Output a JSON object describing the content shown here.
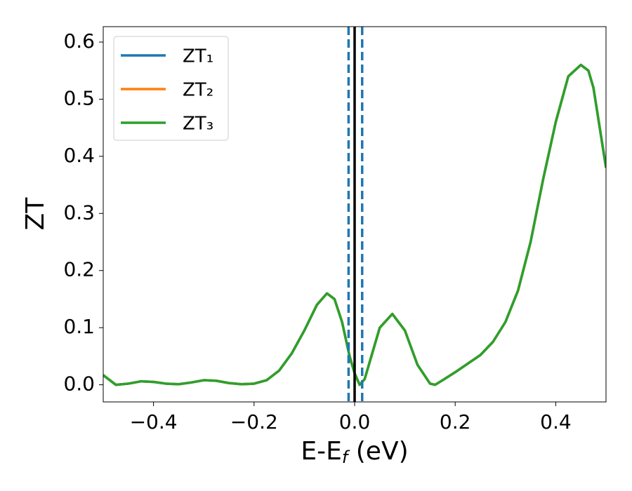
{
  "chart_data": {
    "type": "line",
    "xlabel": {
      "main": "E-E",
      "sub": "f",
      "unit": " (eV)"
    },
    "ylabel": "ZT",
    "x": [
      -0.5,
      -0.475,
      -0.45,
      -0.425,
      -0.4,
      -0.375,
      -0.35,
      -0.325,
      -0.3,
      -0.275,
      -0.25,
      -0.225,
      -0.2,
      -0.175,
      -0.15,
      -0.125,
      -0.1,
      -0.075,
      -0.055,
      -0.04,
      -0.025,
      -0.01,
      0.0,
      0.01,
      0.02,
      0.03,
      0.05,
      0.075,
      0.1,
      0.125,
      0.15,
      0.16,
      0.175,
      0.2,
      0.225,
      0.25,
      0.275,
      0.3,
      0.325,
      0.35,
      0.375,
      0.4,
      0.425,
      0.45,
      0.465,
      0.475,
      0.5
    ],
    "series": [
      {
        "name": "ZT₁",
        "color": "#1f77b4",
        "values": [
          0.017,
          0.0,
          0.002,
          0.006,
          0.005,
          0.002,
          0.001,
          0.004,
          0.008,
          0.007,
          0.003,
          0.001,
          0.002,
          0.008,
          0.025,
          0.055,
          0.095,
          0.14,
          0.16,
          0.15,
          0.11,
          0.05,
          0.02,
          0.0,
          0.01,
          0.04,
          0.1,
          0.124,
          0.095,
          0.035,
          0.002,
          0.0,
          0.008,
          0.022,
          0.037,
          0.052,
          0.075,
          0.11,
          0.165,
          0.25,
          0.36,
          0.46,
          0.54,
          0.56,
          0.55,
          0.52,
          0.38
        ]
      },
      {
        "name": "ZT₂",
        "color": "#ff7f0e",
        "values": [
          0.017,
          0.0,
          0.002,
          0.006,
          0.005,
          0.002,
          0.001,
          0.004,
          0.008,
          0.007,
          0.003,
          0.001,
          0.002,
          0.008,
          0.025,
          0.055,
          0.095,
          0.14,
          0.16,
          0.15,
          0.11,
          0.05,
          0.02,
          0.0,
          0.01,
          0.04,
          0.1,
          0.124,
          0.095,
          0.035,
          0.002,
          0.0,
          0.008,
          0.022,
          0.037,
          0.052,
          0.075,
          0.11,
          0.165,
          0.25,
          0.36,
          0.46,
          0.54,
          0.56,
          0.55,
          0.52,
          0.38
        ]
      },
      {
        "name": "ZT₃",
        "color": "#2ca02c",
        "values": [
          0.017,
          0.0,
          0.002,
          0.006,
          0.005,
          0.002,
          0.001,
          0.004,
          0.008,
          0.007,
          0.003,
          0.001,
          0.002,
          0.008,
          0.025,
          0.055,
          0.095,
          0.14,
          0.16,
          0.15,
          0.11,
          0.05,
          0.02,
          0.0,
          0.01,
          0.04,
          0.1,
          0.124,
          0.095,
          0.035,
          0.002,
          0.0,
          0.008,
          0.022,
          0.037,
          0.052,
          0.075,
          0.11,
          0.165,
          0.25,
          0.36,
          0.46,
          0.54,
          0.56,
          0.55,
          0.52,
          0.38
        ]
      }
    ],
    "vlines": [
      {
        "x": -0.012,
        "color": "#1f77b4",
        "style": "dashed"
      },
      {
        "x": 0.015,
        "color": "#1f77b4",
        "style": "dashed"
      },
      {
        "x": 0.0,
        "color": "#000000",
        "style": "solid"
      }
    ],
    "xlim": [
      -0.5,
      0.5
    ],
    "ylim": [
      -0.03,
      0.627
    ],
    "xticks": [
      {
        "value": -0.4,
        "label": "−0.4"
      },
      {
        "value": -0.2,
        "label": "−0.2"
      },
      {
        "value": 0.0,
        "label": "0.0"
      },
      {
        "value": 0.2,
        "label": "0.2"
      },
      {
        "value": 0.4,
        "label": "0.4"
      }
    ],
    "yticks": [
      {
        "value": 0.0,
        "label": "0.0"
      },
      {
        "value": 0.1,
        "label": "0.1"
      },
      {
        "value": 0.2,
        "label": "0.2"
      },
      {
        "value": 0.3,
        "label": "0.3"
      },
      {
        "value": 0.4,
        "label": "0.4"
      },
      {
        "value": 0.5,
        "label": "0.5"
      },
      {
        "value": 0.6,
        "label": "0.6"
      }
    ],
    "legend": "upper left",
    "grid": false
  }
}
